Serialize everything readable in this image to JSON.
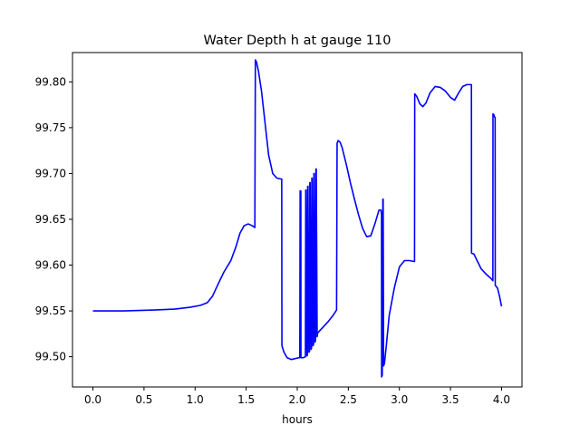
{
  "chart_data": {
    "type": "line",
    "title": "Water Depth h at gauge 110",
    "xlabel": "hours",
    "ylabel": "",
    "xlim": [
      -0.2,
      4.2
    ],
    "ylim": [
      99.467,
      99.832
    ],
    "grid": false,
    "legend": "none",
    "x_ticks": [
      0.0,
      0.5,
      1.0,
      1.5,
      2.0,
      2.5,
      3.0,
      3.5,
      4.0
    ],
    "x_tick_labels": [
      "0.0",
      "0.5",
      "1.0",
      "1.5",
      "2.0",
      "2.5",
      "3.0",
      "3.5",
      "4.0"
    ],
    "y_ticks": [
      99.5,
      99.55,
      99.6,
      99.65,
      99.7,
      99.75,
      99.8
    ],
    "y_tick_labels": [
      "99.50",
      "99.55",
      "99.60",
      "99.65",
      "99.70",
      "99.75",
      "99.80"
    ],
    "series": [
      {
        "color": "#0000ff",
        "x": [
          0.0,
          0.3,
          0.6,
          0.8,
          0.95,
          1.05,
          1.12,
          1.17,
          1.22,
          1.28,
          1.35,
          1.4,
          1.44,
          1.48,
          1.52,
          1.56,
          1.585,
          1.59,
          1.6,
          1.62,
          1.65,
          1.68,
          1.72,
          1.76,
          1.8,
          1.84,
          1.848,
          1.85,
          1.87,
          1.9,
          1.94,
          1.98,
          2.02,
          2.025,
          2.028,
          2.035,
          2.036,
          2.06,
          2.08,
          2.083,
          2.086,
          2.095,
          2.1,
          2.102,
          2.105,
          2.115,
          2.12,
          2.123,
          2.126,
          2.135,
          2.14,
          2.143,
          2.146,
          2.155,
          2.16,
          2.163,
          2.166,
          2.175,
          2.18,
          2.183,
          2.186,
          2.195,
          2.2,
          2.25,
          2.3,
          2.35,
          2.385,
          2.39,
          2.4,
          2.42,
          2.44,
          2.48,
          2.52,
          2.56,
          2.6,
          2.64,
          2.68,
          2.72,
          2.76,
          2.8,
          2.82,
          2.825,
          2.826,
          2.832,
          2.838,
          2.841,
          2.845,
          2.85,
          2.853,
          2.856,
          2.87,
          2.9,
          2.95,
          3.0,
          3.05,
          3.1,
          3.14,
          3.148,
          3.15,
          3.17,
          3.2,
          3.23,
          3.26,
          3.3,
          3.35,
          3.4,
          3.45,
          3.5,
          3.54,
          3.58,
          3.62,
          3.66,
          3.7,
          3.705,
          3.706,
          3.73,
          3.76,
          3.8,
          3.85,
          3.9,
          3.915,
          3.916,
          3.925,
          3.93,
          3.937,
          3.938,
          3.96,
          3.98,
          4.0
        ],
        "y": [
          99.55,
          99.55,
          99.551,
          99.552,
          99.554,
          99.556,
          99.559,
          99.566,
          99.578,
          99.592,
          99.605,
          99.62,
          99.635,
          99.643,
          99.645,
          99.643,
          99.641,
          99.824,
          99.822,
          99.812,
          99.79,
          99.76,
          99.72,
          99.7,
          99.695,
          99.694,
          99.694,
          99.512,
          99.505,
          99.499,
          99.497,
          99.498,
          99.499,
          99.499,
          99.681,
          99.681,
          99.499,
          99.499,
          99.5,
          99.682,
          99.682,
          99.501,
          99.502,
          99.686,
          99.686,
          99.505,
          99.506,
          99.69,
          99.69,
          99.508,
          99.51,
          99.695,
          99.695,
          99.512,
          99.514,
          99.7,
          99.7,
          99.516,
          99.52,
          99.705,
          99.705,
          99.522,
          99.526,
          99.532,
          99.538,
          99.545,
          99.551,
          99.733,
          99.736,
          99.734,
          99.728,
          99.71,
          99.69,
          99.672,
          99.655,
          99.64,
          99.631,
          99.632,
          99.645,
          99.66,
          99.66,
          99.655,
          99.478,
          99.48,
          99.672,
          99.672,
          99.49,
          99.492,
          99.492,
          99.495,
          99.51,
          99.545,
          99.575,
          99.598,
          99.605,
          99.605,
          99.604,
          99.604,
          99.787,
          99.784,
          99.776,
          99.773,
          99.777,
          99.788,
          99.795,
          99.794,
          99.79,
          99.783,
          99.78,
          99.788,
          99.795,
          99.797,
          99.797,
          99.797,
          99.613,
          99.612,
          99.605,
          99.596,
          99.59,
          99.585,
          99.583,
          99.765,
          99.764,
          99.762,
          99.761,
          99.578,
          99.575,
          99.566,
          99.555
        ]
      }
    ]
  }
}
